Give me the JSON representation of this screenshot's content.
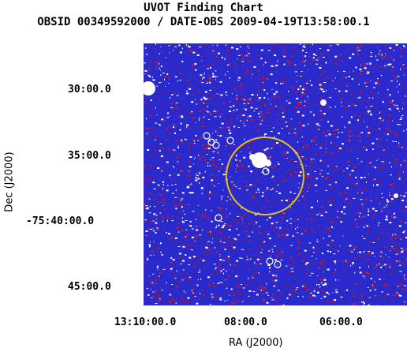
{
  "header": {
    "title": "UVOT Finding Chart",
    "subtitle": "OBSID 00349592000 / DATE-OBS 2009-04-19T13:58:00.1"
  },
  "axes": {
    "ylabel": "Dec (J2000)",
    "xlabel": "RA (J2000)",
    "yticks": [
      "30:00.0",
      "35:00.0",
      "-75:40:00.0",
      "45:00.0"
    ],
    "xticks": [
      "13:10:00.0",
      "08:00.0",
      "06:00.0"
    ]
  },
  "colors": {
    "background": "#2a2acc",
    "noise_red": "#d01818",
    "noise_white": "#ffffff",
    "circle": "#e0c020"
  }
}
